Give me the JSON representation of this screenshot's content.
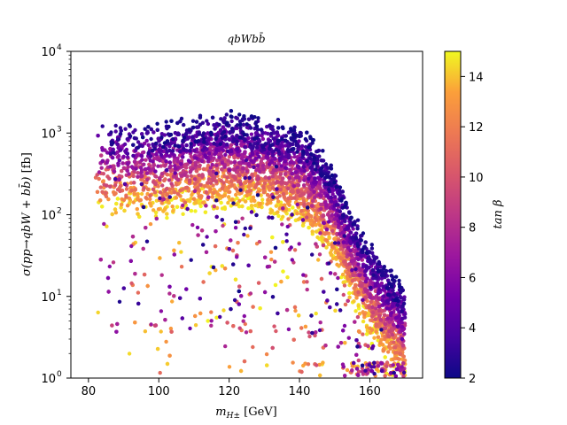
{
  "chart_data": {
    "type": "scatter",
    "title": "qbWbb̄",
    "xlabel": "m_{H±} [GeV]",
    "ylabel": "σ(pp→qbW + bb̄) [fb]",
    "xlim": [
      75,
      175
    ],
    "ylim": [
      1,
      10000
    ],
    "yscale": "log",
    "grid": false,
    "x_ticks": [
      80,
      100,
      120,
      140,
      160
    ],
    "y_ticks": [
      1,
      10,
      100,
      1000,
      10000
    ],
    "x_tick_labels": [
      "80",
      "100",
      "120",
      "140",
      "160"
    ],
    "y_tick_labels": [
      "10",
      "10",
      "10",
      "10",
      "10"
    ],
    "y_tick_exponents": [
      "0",
      "1",
      "2",
      "3",
      "4"
    ],
    "colorbar": {
      "label": "tan β",
      "colormap": "plasma",
      "range": [
        2,
        15
      ],
      "ticks": [
        2,
        4,
        6,
        8,
        10,
        12,
        14
      ],
      "tick_labels": [
        "2",
        "4",
        "6",
        "8",
        "10",
        "12",
        "14"
      ]
    },
    "series": [
      {
        "marker_color_by": "tan β",
        "description_of_distribution": "upper envelope ~1500-2000 fb for mH+ 80-140 GeV, falling to ~15 fb at 170 GeV; low tanβ points on top, high tanβ below",
        "envelope_x": [
          82,
          90,
          100,
          110,
          120,
          130,
          140,
          145,
          150,
          155,
          160,
          165,
          170
        ],
        "envelope_ymax": [
          1500,
          1500,
          1500,
          1700,
          2000,
          1700,
          1300,
          800,
          400,
          130,
          50,
          25,
          15
        ],
        "points_count_estimate": 6000
      }
    ]
  }
}
